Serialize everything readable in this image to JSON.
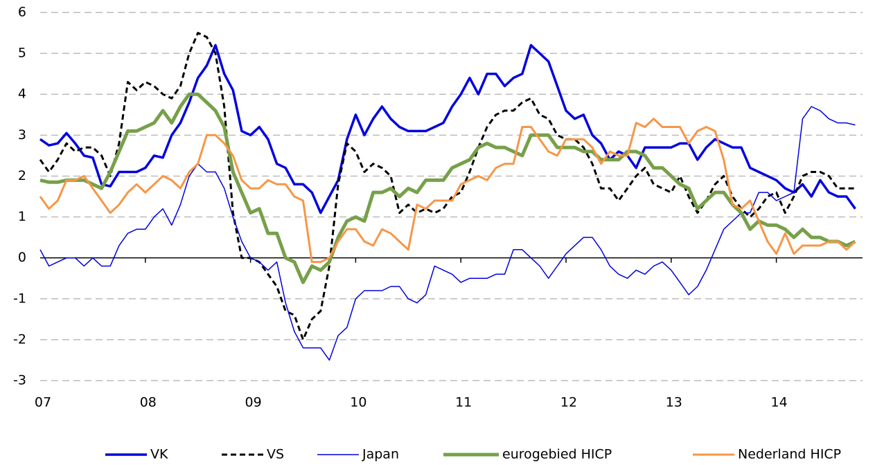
{
  "chart_data": {
    "type": "line",
    "categories": [
      "07",
      null,
      null,
      null,
      null,
      null,
      null,
      null,
      null,
      null,
      null,
      null,
      "08",
      null,
      null,
      null,
      null,
      null,
      null,
      null,
      null,
      null,
      null,
      null,
      "09",
      null,
      null,
      null,
      null,
      null,
      null,
      null,
      null,
      null,
      null,
      null,
      "10",
      null,
      null,
      null,
      null,
      null,
      null,
      null,
      null,
      null,
      null,
      null,
      "11",
      null,
      null,
      null,
      null,
      null,
      null,
      null,
      null,
      null,
      null,
      null,
      "12",
      null,
      null,
      null,
      null,
      null,
      null,
      null,
      null,
      null,
      null,
      null,
      "13",
      null,
      null,
      null,
      null,
      null,
      null,
      null,
      null,
      null,
      null,
      null,
      "14",
      null,
      null,
      null,
      null,
      null,
      null,
      null,
      null,
      null
    ],
    "ylim": [
      -3,
      6
    ],
    "yticks": [
      -3,
      -2,
      -1,
      0,
      1,
      2,
      3,
      4,
      5,
      6
    ],
    "grid": true,
    "legend": "bottom",
    "series": [
      {
        "name": "VK",
        "color": "#0000e0",
        "width": 3.5,
        "dash": false,
        "values": [
          2.9,
          2.75,
          2.8,
          3.05,
          2.8,
          2.5,
          2.45,
          1.8,
          1.75,
          2.1,
          2.1,
          2.1,
          2.2,
          2.5,
          2.45,
          3.0,
          3.3,
          3.8,
          4.4,
          4.7,
          5.2,
          4.5,
          4.1,
          3.1,
          3.0,
          3.2,
          2.9,
          2.3,
          2.2,
          1.8,
          1.8,
          1.6,
          1.1,
          1.5,
          1.9,
          2.9,
          3.5,
          3.0,
          3.4,
          3.7,
          3.4,
          3.2,
          3.1,
          3.1,
          3.1,
          3.2,
          3.3,
          3.7,
          4.0,
          4.4,
          4.0,
          4.5,
          4.5,
          4.2,
          4.4,
          4.5,
          5.2,
          5.0,
          4.8,
          4.2,
          3.6,
          3.4,
          3.5,
          3.0,
          2.8,
          2.4,
          2.6,
          2.5,
          2.2,
          2.7,
          2.7,
          2.7,
          2.7,
          2.8,
          2.8,
          2.4,
          2.7,
          2.9,
          2.8,
          2.7,
          2.7,
          2.2,
          2.1,
          2.0,
          1.9,
          1.7,
          1.6,
          1.8,
          1.5,
          1.9,
          1.6,
          1.5,
          1.5,
          1.2
        ]
      },
      {
        "name": "VS",
        "color": "#000000",
        "width": 3,
        "dash": true,
        "values": [
          2.4,
          2.1,
          2.4,
          2.8,
          2.6,
          2.7,
          2.7,
          2.5,
          2.0,
          2.8,
          4.3,
          4.1,
          4.3,
          4.2,
          4.0,
          3.9,
          4.2,
          5.0,
          5.5,
          5.4,
          5.0,
          3.7,
          1.1,
          0.0,
          0.0,
          -0.1,
          -0.4,
          -0.7,
          -1.3,
          -1.4,
          -2.0,
          -1.5,
          -1.3,
          -0.2,
          1.8,
          2.8,
          2.6,
          2.1,
          2.3,
          2.2,
          2.0,
          1.1,
          1.3,
          1.1,
          1.2,
          1.1,
          1.2,
          1.5,
          1.6,
          2.1,
          2.7,
          3.2,
          3.5,
          3.6,
          3.6,
          3.8,
          3.9,
          3.5,
          3.4,
          3.0,
          2.9,
          2.9,
          2.7,
          2.3,
          1.7,
          1.7,
          1.4,
          1.7,
          2.0,
          2.2,
          1.8,
          1.7,
          1.6,
          2.0,
          1.5,
          1.1,
          1.4,
          1.8,
          2.0,
          1.5,
          1.2,
          1.0,
          1.2,
          1.5,
          1.6,
          1.1,
          1.5,
          2.0,
          2.1,
          2.1,
          2.0,
          1.7,
          1.7,
          1.7
        ]
      },
      {
        "name": "Japan",
        "color": "#0000e0",
        "width": 1.5,
        "dash": false,
        "values": [
          0.2,
          -0.2,
          -0.1,
          0.0,
          0.0,
          -0.2,
          0.0,
          -0.2,
          -0.2,
          0.3,
          0.6,
          0.7,
          0.7,
          1.0,
          1.2,
          0.8,
          1.3,
          2.0,
          2.3,
          2.1,
          2.1,
          1.7,
          1.0,
          0.4,
          0.0,
          -0.1,
          -0.3,
          -0.1,
          -1.1,
          -1.8,
          -2.2,
          -2.2,
          -2.2,
          -2.5,
          -1.9,
          -1.7,
          -1.0,
          -0.8,
          -0.8,
          -0.8,
          -0.7,
          -0.7,
          -1.0,
          -1.1,
          -0.9,
          -0.2,
          -0.3,
          -0.4,
          -0.6,
          -0.5,
          -0.5,
          -0.5,
          -0.4,
          -0.4,
          0.2,
          0.2,
          0.0,
          -0.2,
          -0.5,
          -0.2,
          0.1,
          0.3,
          0.5,
          0.5,
          0.2,
          -0.2,
          -0.4,
          -0.5,
          -0.3,
          -0.4,
          -0.2,
          -0.1,
          -0.3,
          -0.6,
          -0.9,
          -0.7,
          -0.3,
          0.2,
          0.7,
          0.9,
          1.1,
          1.1,
          1.6,
          1.6,
          1.4,
          1.5,
          1.6,
          3.4,
          3.7,
          3.6,
          3.4,
          3.3,
          3.3,
          3.25
        ]
      },
      {
        "name": "eurogebied HICP",
        "color": "#77a04a",
        "width": 5,
        "dash": false,
        "values": [
          1.9,
          1.85,
          1.85,
          1.9,
          1.9,
          1.9,
          1.8,
          1.7,
          2.1,
          2.6,
          3.1,
          3.1,
          3.2,
          3.3,
          3.6,
          3.3,
          3.7,
          4.0,
          4.0,
          3.8,
          3.6,
          3.2,
          2.1,
          1.6,
          1.1,
          1.2,
          0.6,
          0.6,
          0.0,
          -0.1,
          -0.6,
          -0.2,
          -0.3,
          -0.1,
          0.5,
          0.9,
          1.0,
          0.9,
          1.6,
          1.6,
          1.7,
          1.5,
          1.7,
          1.6,
          1.9,
          1.9,
          1.9,
          2.2,
          2.3,
          2.4,
          2.7,
          2.8,
          2.7,
          2.7,
          2.6,
          2.5,
          3.0,
          3.0,
          3.0,
          2.7,
          2.7,
          2.7,
          2.6,
          2.6,
          2.4,
          2.4,
          2.4,
          2.6,
          2.6,
          2.5,
          2.2,
          2.2,
          2.0,
          1.8,
          1.7,
          1.2,
          1.4,
          1.6,
          1.6,
          1.3,
          1.1,
          0.7,
          0.9,
          0.8,
          0.8,
          0.7,
          0.5,
          0.7,
          0.5,
          0.5,
          0.4,
          0.4,
          0.3,
          0.4
        ]
      },
      {
        "name": "Nederland HICP",
        "color": "#f79646",
        "width": 3,
        "dash": false,
        "values": [
          1.5,
          1.2,
          1.4,
          1.9,
          1.9,
          2.0,
          1.7,
          1.4,
          1.1,
          1.3,
          1.6,
          1.8,
          1.6,
          1.8,
          2.0,
          1.9,
          1.7,
          2.1,
          2.3,
          3.0,
          3.0,
          2.8,
          2.5,
          1.9,
          1.7,
          1.7,
          1.9,
          1.8,
          1.8,
          1.5,
          1.4,
          -0.1,
          -0.1,
          0.0,
          0.4,
          0.7,
          0.7,
          0.4,
          0.3,
          0.7,
          0.6,
          0.4,
          0.2,
          1.3,
          1.2,
          1.4,
          1.4,
          1.4,
          1.8,
          1.9,
          2.0,
          1.9,
          2.2,
          2.3,
          2.3,
          3.2,
          3.2,
          2.9,
          2.6,
          2.5,
          2.9,
          2.9,
          2.9,
          2.7,
          2.3,
          2.6,
          2.5,
          2.5,
          3.3,
          3.2,
          3.4,
          3.2,
          3.2,
          3.2,
          2.8,
          3.1,
          3.2,
          3.1,
          2.4,
          1.3,
          1.2,
          1.4,
          0.9,
          0.4,
          0.1,
          0.6,
          0.1,
          0.3,
          0.3,
          0.3,
          0.4,
          0.4,
          0.2,
          0.4
        ]
      }
    ]
  }
}
